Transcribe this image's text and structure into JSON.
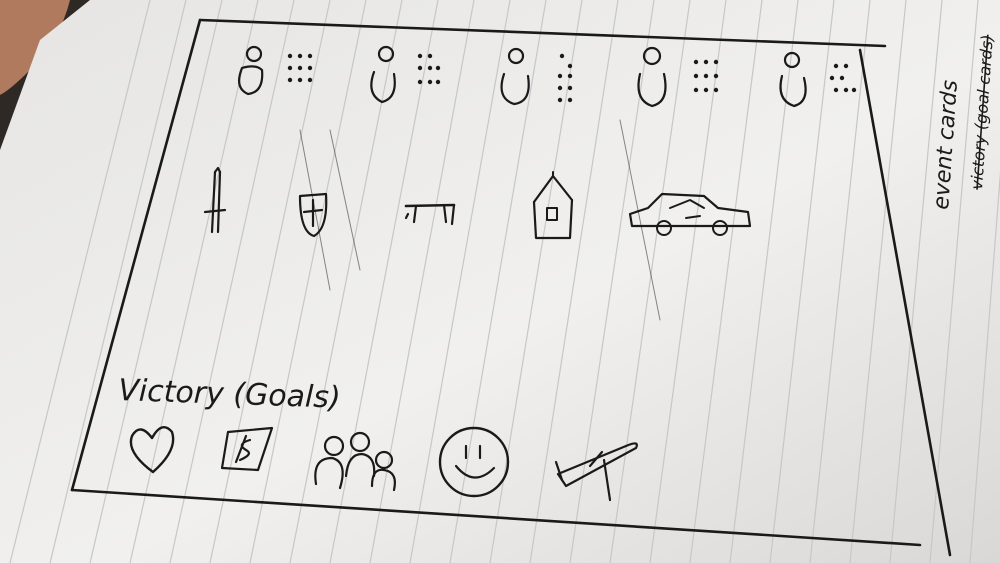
{
  "scene": {
    "description_free": true,
    "paper_color": "#efeeec",
    "line_color": "#c9c8cc",
    "ink_color": "#1a1a1a",
    "shadow_color": "#2e2823"
  },
  "sketch": {
    "victory_label": "Victory (Goals)",
    "side_note_1": "event cards",
    "side_note_2": "victory (goal cards)",
    "top_row_icons": [
      "player-with-dots-icon",
      "player-with-dots-icon",
      "player-with-dots-icon",
      "player-with-dots-icon",
      "player-with-dots-icon"
    ],
    "middle_row_icons": [
      "sword-icon",
      "shield-icon",
      "gate-icon",
      "house-icon",
      "car-icon"
    ],
    "bottom_row_icons": [
      "heart-icon",
      "money-icon",
      "people-icon",
      "smiley-icon",
      "airplane-icon"
    ]
  }
}
